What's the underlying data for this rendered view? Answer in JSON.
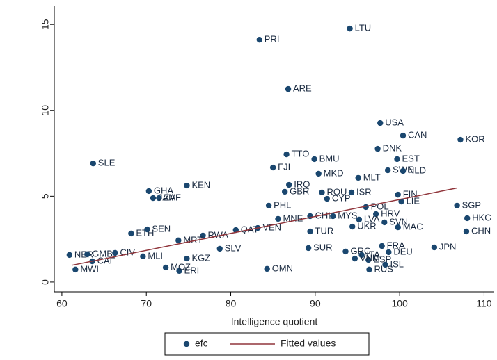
{
  "chart_data": {
    "type": "scatter",
    "x_label": "Intelligence quotient",
    "xlim": [
      59.1,
      111.2
    ],
    "ylim": [
      -0.57,
      16.1
    ],
    "xticks": [
      60,
      70,
      80,
      90,
      100,
      110
    ],
    "yticks": [
      0,
      5,
      10,
      15
    ],
    "series": [
      {
        "name": "efc",
        "type": "scatter",
        "color": "#1a476f",
        "labels": [
          "LTU",
          "PRI",
          "ARE",
          "USA",
          "CAN",
          "KOR",
          "DNK",
          "EST",
          "TTO",
          "BMU",
          "SLE",
          "FJI",
          "SWE",
          "NLD",
          "MKD",
          "MLT",
          "KEN",
          "IRQ",
          "GHA",
          "GBR",
          "ROU",
          "ISR",
          "ZAF",
          "JAM",
          "FIN",
          "CYP",
          "LIE",
          "PHL",
          "SGP",
          "POL",
          "HRV",
          "MNE",
          "CHL",
          "MYS",
          "HKG",
          "LVA",
          "UKR",
          "SVN",
          "MAC",
          "CHN",
          "ETH",
          "SEN",
          "QAT",
          "VEN",
          "TUR",
          "RWA",
          "MRT",
          "FRA",
          "JPN",
          "DEU",
          "GRC",
          "ITA",
          "SUR",
          "SLV",
          "NER",
          "GMB",
          "CIV",
          "CAF",
          "MLI",
          "KGZ",
          "MWI",
          "ESP",
          "VNM",
          "ISL",
          "RUS",
          "ERI",
          "MOZ",
          "OMN"
        ],
        "x": [
          94.1,
          83.4,
          86.8,
          97.7,
          100.4,
          107.2,
          97.4,
          99.7,
          86.6,
          89.9,
          63.7,
          85.0,
          98.6,
          100.4,
          90.4,
          95.1,
          74.8,
          86.9,
          70.3,
          86.4,
          90.8,
          94.3,
          71.5,
          70.8,
          99.8,
          91.4,
          100.2,
          84.5,
          106.8,
          96.0,
          97.2,
          85.6,
          89.4,
          92.1,
          108.0,
          95.2,
          94.4,
          98.2,
          99.8,
          107.9,
          68.2,
          70.1,
          80.6,
          83.2,
          89.4,
          76.7,
          73.8,
          97.9,
          104.1,
          98.7,
          93.6,
          95.5,
          89.2,
          78.7,
          60.9,
          63.0,
          66.3,
          63.6,
          69.6,
          74.8,
          61.6,
          96.3,
          94.7,
          98.3,
          96.4,
          73.9,
          72.3,
          84.3
        ],
        "values": [
          14.76,
          14.11,
          11.24,
          9.26,
          8.53,
          8.29,
          7.76,
          7.16,
          7.44,
          7.16,
          6.91,
          6.67,
          6.51,
          6.47,
          6.31,
          6.07,
          5.62,
          5.66,
          5.3,
          5.26,
          5.22,
          5.22,
          4.89,
          4.89,
          5.09,
          4.85,
          4.69,
          4.45,
          4.45,
          4.37,
          3.96,
          3.68,
          3.84,
          3.84,
          3.72,
          3.64,
          3.23,
          3.48,
          3.19,
          2.95,
          2.83,
          3.07,
          3.03,
          3.15,
          2.95,
          2.71,
          2.43,
          2.1,
          2.02,
          1.74,
          1.78,
          1.58,
          1.98,
          1.94,
          1.58,
          1.62,
          1.7,
          1.21,
          1.5,
          1.37,
          0.73,
          1.29,
          1.37,
          1.01,
          0.73,
          0.65,
          0.85,
          0.77
        ]
      },
      {
        "name": "Fitted values",
        "type": "line",
        "color": "#90353b",
        "x": [
          61.2,
          106.8
        ],
        "values": [
          0.98,
          5.48
        ]
      }
    ]
  }
}
